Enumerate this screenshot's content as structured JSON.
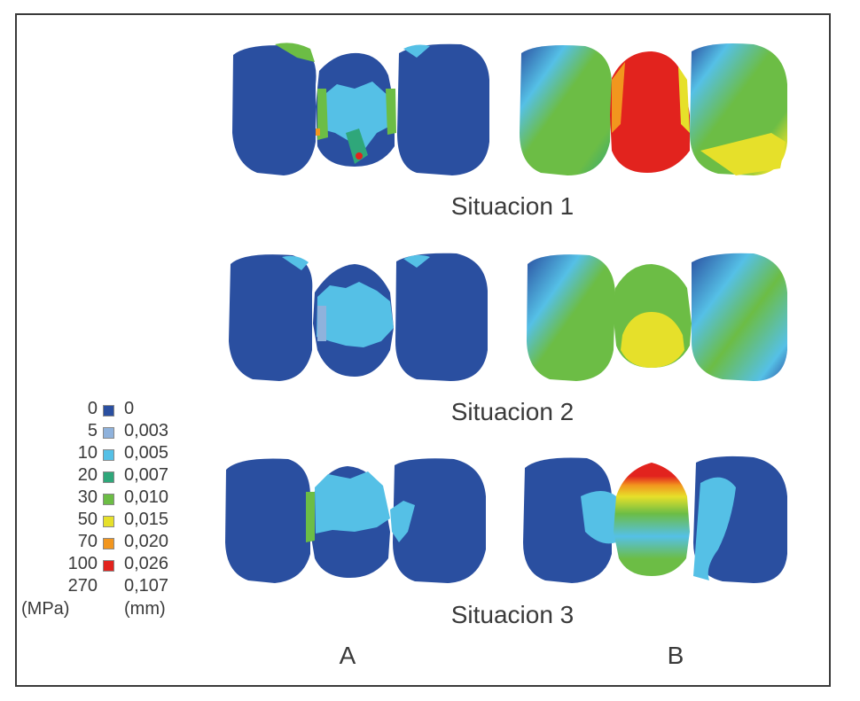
{
  "situations": [
    {
      "label": "Situacion 1"
    },
    {
      "label": "Situacion 2"
    },
    {
      "label": "Situacion 3"
    }
  ],
  "columns": [
    "A",
    "B"
  ],
  "legend": {
    "mpa_unit": "(MPa)",
    "mm_unit": "(mm)",
    "entries": [
      {
        "mpa": "0",
        "mm": "0",
        "color": "#2a4fa0"
      },
      {
        "mpa": "5",
        "mm": "0,003",
        "color": "#8fb2dc"
      },
      {
        "mpa": "10",
        "mm": "0,005",
        "color": "#55c0e6"
      },
      {
        "mpa": "20",
        "mm": "0,007",
        "color": "#2fa77a"
      },
      {
        "mpa": "30",
        "mm": "0,010",
        "color": "#6cbd45"
      },
      {
        "mpa": "50",
        "mm": "0,015",
        "color": "#e6e02a"
      },
      {
        "mpa": "70",
        "mm": "0,020",
        "color": "#f2961e"
      },
      {
        "mpa": "100",
        "mm": "0,026",
        "color": "#e2231e"
      },
      {
        "mpa": "270",
        "mm": "0,107",
        "color": "#ffffff"
      }
    ]
  },
  "colors": {
    "blue": "#2a4fa0",
    "light_blue": "#55c0e6",
    "green": "#6cbd45",
    "yellow": "#e6e02a",
    "orange": "#f2961e",
    "red": "#e2231e"
  }
}
